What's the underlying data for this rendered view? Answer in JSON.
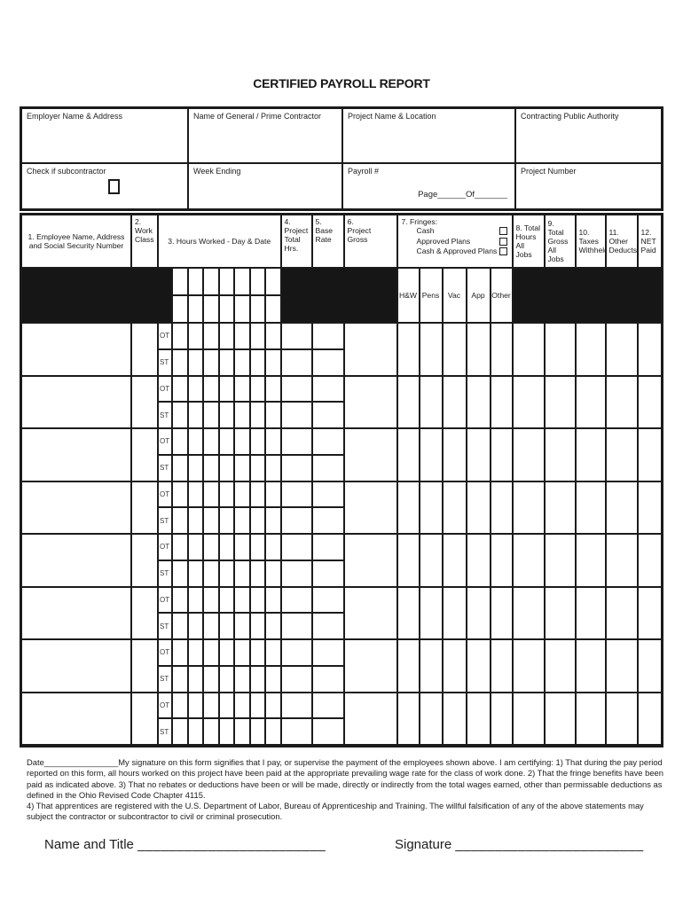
{
  "title": "CERTIFIED PAYROLL REPORT",
  "info": {
    "employer": "Employer Name & Address",
    "general_contractor": "Name of General / Prime Contractor",
    "project_name": "Project Name & Location",
    "authority": "Contracting Public Authority",
    "check_subcontractor": "Check if subcontractor",
    "week_ending": "Week Ending",
    "payroll_no": "Payroll #",
    "page_of": "Page______Of_______",
    "project_number": "Project Number"
  },
  "table": {
    "headers": {
      "employee": "1. Employee Name, Address\nand Social Security Number",
      "work_class": "2.\nWork\nClass",
      "hours_worked": "3. Hours Worked - Day & Date",
      "project_total_hrs": "4.\nProject\nTotal Hrs.",
      "base_rate": "5.\nBase\nRate",
      "project_gross": "6.\nProject\nGross",
      "fringes_title": "7. Fringes:",
      "fringes_options": [
        "Cash",
        "Approved Plans",
        "Cash & Approved Plans"
      ],
      "total_hours": "8. Total\nHours\nAll Jobs",
      "total_gross": "9. Total\nGross\nAll Jobs",
      "taxes": "10.\nTaxes\nWithheld",
      "other_deducts": "11.\nOther\nDeducts",
      "net_paid": "12.\nNET\nPaid"
    },
    "fringe_columns": [
      "H&W",
      "Pens",
      "Vac",
      "App",
      "Other"
    ],
    "row_labels": {
      "overtime": "OT",
      "standard": "ST"
    },
    "employee_rows": 8,
    "day_columns": 7
  },
  "certification": {
    "date_label": "Date________________",
    "text": "My signature on this form signifies that I pay, or supervise the payment of the employees shown above. I am certifying: 1) That during the pay period reported on this form, all hours worked on this project have been paid at the appropriate prevailing wage rate for the class of work done. 2) That the fringe benefits have been paid as indicated above. 3) That no rebates or deductions have been or will be made, directly or indirectly from the total wages earned, other than permissable deductions as defined in the Ohio Revised Code Chapter 4115.",
    "text2": "4) That apprentices are registered with the U.S. Department of Labor, Bureau of Apprenticeship and Training. The willful falsification of any of the above statements may subject the contractor or subcontractor to civil or criminal prosecution."
  },
  "signature": {
    "name_title_label": "Name and Title",
    "name_title_line": "________________________",
    "signature_label": "Signature",
    "signature_line": "________________________"
  },
  "colors": {
    "ink": "#1b1b1b",
    "band": "#161616",
    "paper": "#ffffff"
  }
}
